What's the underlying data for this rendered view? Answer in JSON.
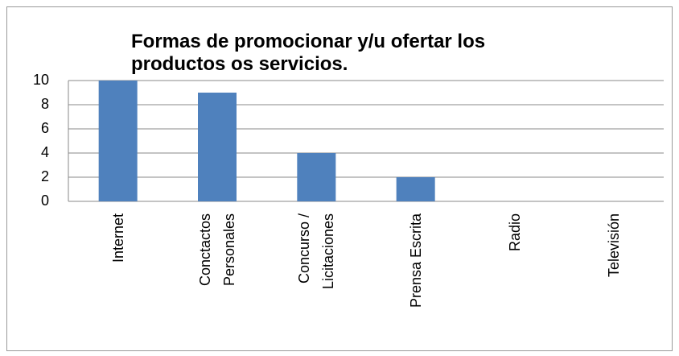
{
  "chart_data": {
    "type": "bar",
    "title": "Formas de promocionar y/u ofertar los productos os servicios.",
    "categories": [
      "Internet",
      "Conctactos Personales",
      "Concurso / Licitaciones",
      "Prensa Escrita",
      "Radio",
      "Televisión"
    ],
    "values": [
      10,
      9,
      4,
      2,
      0,
      0
    ],
    "color": "#4f81bd",
    "ylim": [
      0,
      10
    ],
    "yticks": [
      0,
      2,
      4,
      6,
      8,
      10
    ],
    "grid": true
  }
}
